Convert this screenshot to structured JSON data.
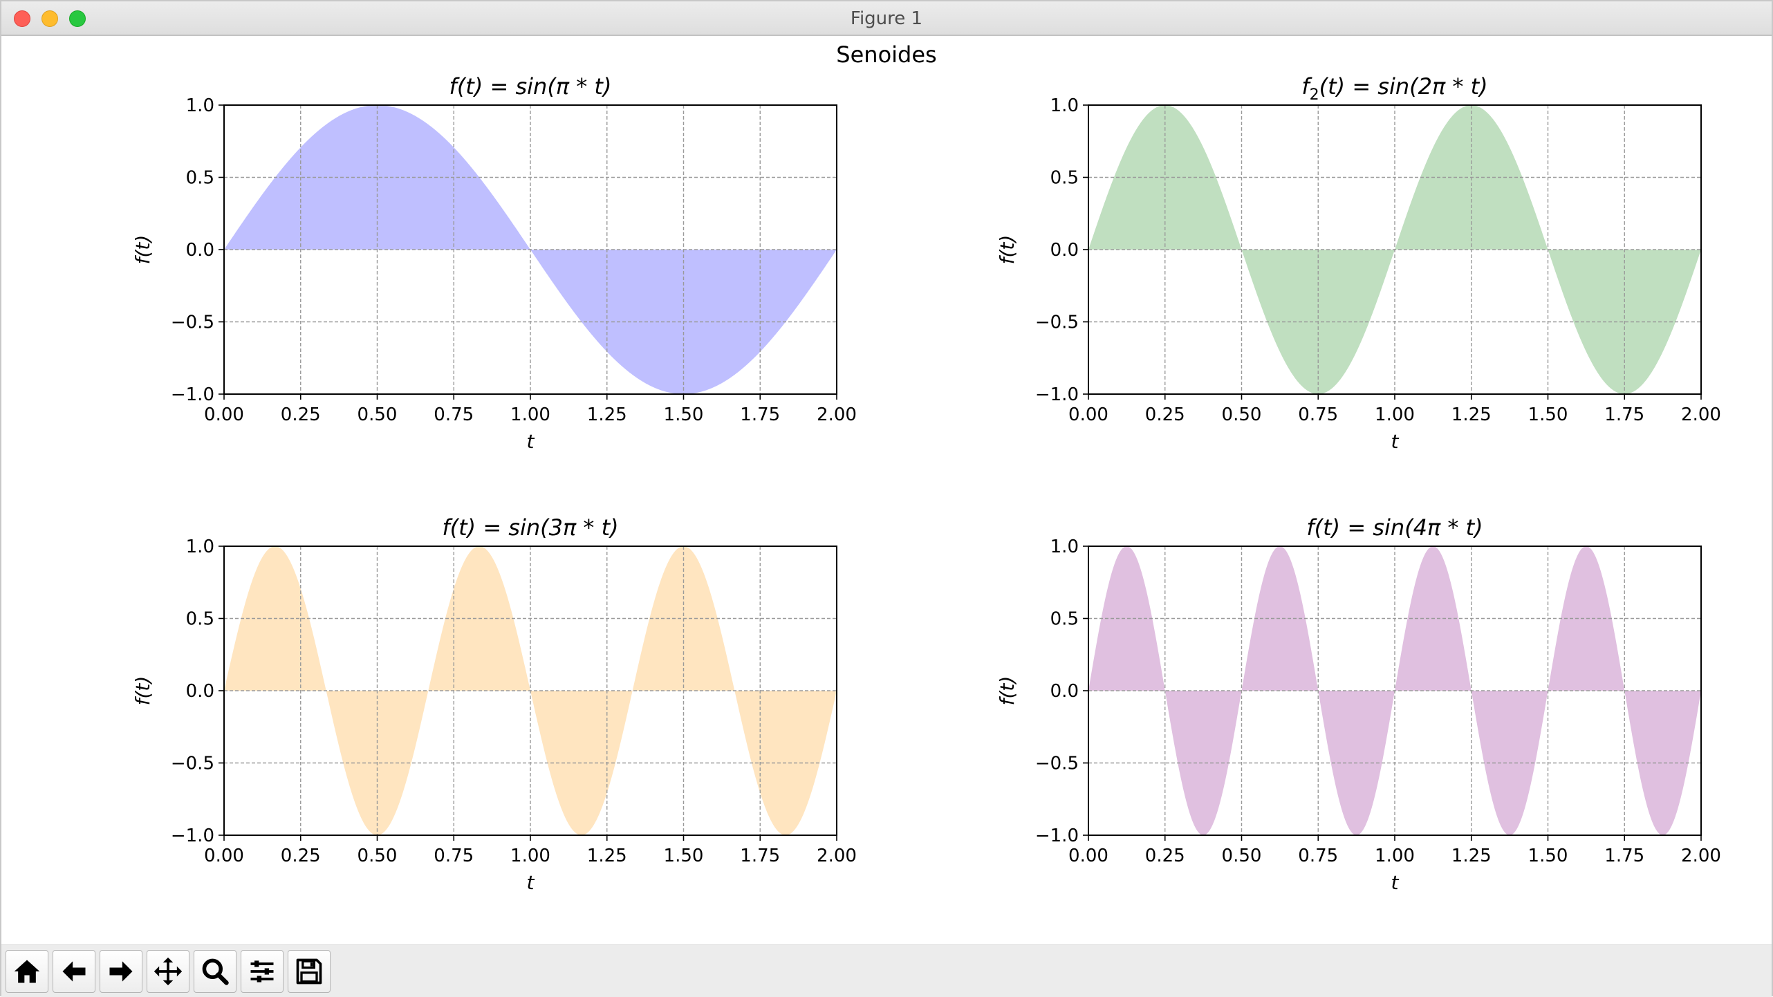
{
  "window": {
    "title": "Figure 1"
  },
  "toolbar": {
    "tools": [
      {
        "name": "home-button",
        "icon": "home-icon"
      },
      {
        "name": "back-button",
        "icon": "arrow-left-icon"
      },
      {
        "name": "forward-button",
        "icon": "arrow-right-icon"
      },
      {
        "name": "pan-button",
        "icon": "move-icon"
      },
      {
        "name": "zoom-button",
        "icon": "magnifier-icon"
      },
      {
        "name": "configure-subplots-button",
        "icon": "sliders-icon"
      },
      {
        "name": "save-button",
        "icon": "floppy-disk-icon"
      }
    ]
  },
  "figure": {
    "suptitle": "Senoides"
  },
  "chart_data": [
    {
      "type": "area",
      "title_parts": {
        "fn": "f",
        "sub": "",
        "body": "(t) = sin(π * t)"
      },
      "function": "sin(pi*t)",
      "frequency": 1,
      "xlabel": "t",
      "ylabel": "f(t)",
      "xlim": [
        0,
        2
      ],
      "ylim": [
        -1,
        1
      ],
      "xticks": [
        "0.00",
        "0.25",
        "0.50",
        "0.75",
        "1.00",
        "1.25",
        "1.50",
        "1.75",
        "2.00"
      ],
      "yticks": [
        "1.0",
        "0.5",
        "0.0",
        "−0.5",
        "−1.0"
      ],
      "grid": true,
      "fill_color": "#bfbfff"
    },
    {
      "type": "area",
      "title_parts": {
        "fn": "f",
        "sub": "2",
        "body": "(t) = sin(2π * t)"
      },
      "function": "sin(2*pi*t)",
      "frequency": 2,
      "xlabel": "t",
      "ylabel": "f(t)",
      "xlim": [
        0,
        2
      ],
      "ylim": [
        -1,
        1
      ],
      "xticks": [
        "0.00",
        "0.25",
        "0.50",
        "0.75",
        "1.00",
        "1.25",
        "1.50",
        "1.75",
        "2.00"
      ],
      "yticks": [
        "1.0",
        "0.5",
        "0.0",
        "−0.5",
        "−1.0"
      ],
      "grid": true,
      "fill_color": "#c0dfc0"
    },
    {
      "type": "area",
      "title_parts": {
        "fn": "f",
        "sub": "",
        "body": "(t) = sin(3π * t)"
      },
      "function": "sin(3*pi*t)",
      "frequency": 3,
      "xlabel": "t",
      "ylabel": "f(t)",
      "xlim": [
        0,
        2
      ],
      "ylim": [
        -1,
        1
      ],
      "xticks": [
        "0.00",
        "0.25",
        "0.50",
        "0.75",
        "1.00",
        "1.25",
        "1.50",
        "1.75",
        "2.00"
      ],
      "yticks": [
        "1.0",
        "0.5",
        "0.0",
        "−0.5",
        "−1.0"
      ],
      "grid": true,
      "fill_color": "#ffe5c0"
    },
    {
      "type": "area",
      "title_parts": {
        "fn": "f",
        "sub": "",
        "body": "(t) = sin(4π * t)"
      },
      "function": "sin(4*pi*t)",
      "frequency": 4,
      "xlabel": "t",
      "ylabel": "f(t)",
      "xlim": [
        0,
        2
      ],
      "ylim": [
        -1,
        1
      ],
      "xticks": [
        "0.00",
        "0.25",
        "0.50",
        "0.75",
        "1.00",
        "1.25",
        "1.50",
        "1.75",
        "2.00"
      ],
      "yticks": [
        "1.0",
        "0.5",
        "0.0",
        "−0.5",
        "−1.0"
      ],
      "grid": true,
      "fill_color": "#e0c0e0"
    }
  ]
}
